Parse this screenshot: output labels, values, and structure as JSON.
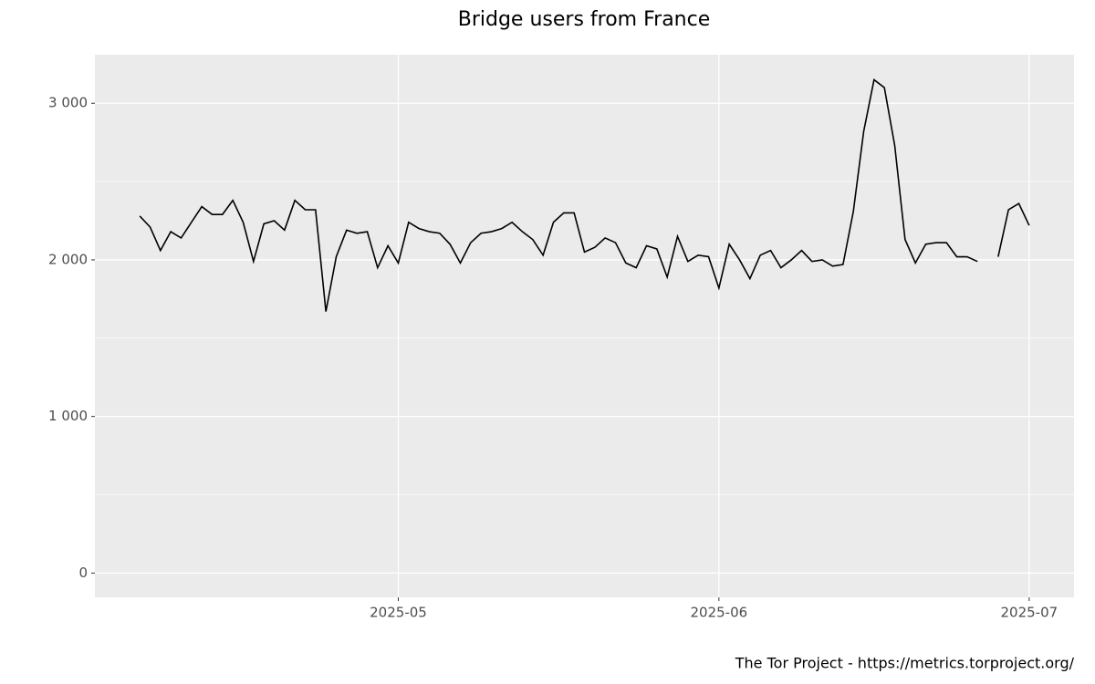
{
  "chart_data": {
    "type": "line",
    "title": "Bridge users from France",
    "caption": "The Tor Project - https://metrics.torproject.org/",
    "categories": [
      null,
      null,
      null,
      null,
      null,
      null,
      null,
      null,
      null,
      null,
      null,
      null,
      null,
      null,
      null,
      null,
      null,
      null,
      null,
      null,
      null,
      null,
      null,
      null,
      null,
      "2025-05",
      null,
      null,
      null,
      null,
      null,
      null,
      null,
      null,
      null,
      null,
      null,
      null,
      null,
      null,
      null,
      null,
      null,
      null,
      null,
      null,
      null,
      null,
      null,
      null,
      null,
      null,
      null,
      null,
      null,
      null,
      "2025-06",
      null,
      null,
      null,
      null,
      null,
      null,
      null,
      null,
      null,
      null,
      null,
      null,
      null,
      null,
      null,
      null,
      null,
      null,
      null,
      null,
      null,
      null,
      null,
      null,
      null,
      null,
      null,
      null,
      null,
      "2025-07"
    ],
    "values": [
      2280,
      2210,
      2060,
      2180,
      2140,
      2240,
      2340,
      2290,
      2290,
      2380,
      2240,
      1990,
      2230,
      2250,
      2190,
      2380,
      2320,
      2320,
      1670,
      2020,
      2190,
      2170,
      2180,
      1950,
      2090,
      1980,
      2240,
      2200,
      2180,
      2170,
      2100,
      1980,
      2110,
      2170,
      2180,
      2200,
      2240,
      2180,
      2130,
      2030,
      2240,
      2300,
      2300,
      2050,
      2080,
      2140,
      2110,
      1980,
      1950,
      2090,
      2070,
      1890,
      2150,
      1990,
      2030,
      2020,
      1820,
      2100,
      2000,
      1880,
      2030,
      2060,
      1950,
      2000,
      2060,
      1990,
      2000,
      1960,
      1970,
      2310,
      2820,
      3150,
      3100,
      2730,
      2130,
      1980,
      2100,
      2110,
      2110,
      2020,
      2020,
      1990,
      null,
      2020,
      2320,
      2360,
      2220
    ],
    "color": "#000000",
    "ylim": [
      -155,
      3310
    ],
    "yticks": [
      {
        "value": 0,
        "label": "0"
      },
      {
        "value": 1000,
        "label": "1 000"
      },
      {
        "value": 2000,
        "label": "2 000"
      },
      {
        "value": 3000,
        "label": "3 000"
      }
    ],
    "minor_yticks": [
      500,
      1500,
      2500
    ],
    "grid": true
  }
}
